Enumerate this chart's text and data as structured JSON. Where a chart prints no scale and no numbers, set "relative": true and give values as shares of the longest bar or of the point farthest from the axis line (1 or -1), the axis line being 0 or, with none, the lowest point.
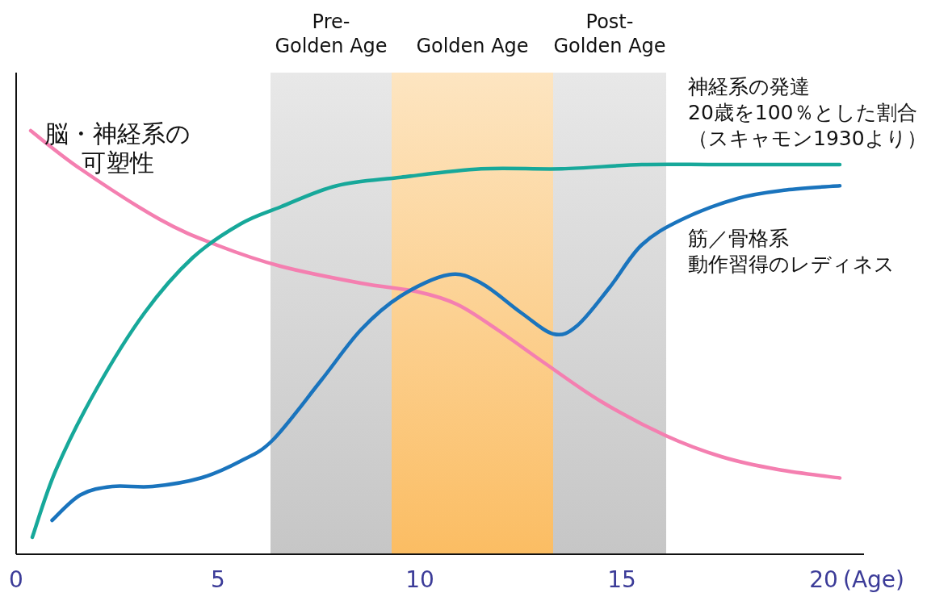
{
  "chart_data": {
    "type": "line",
    "relative": true,
    "xlabel": "(Age)",
    "xlim": [
      0,
      21
    ],
    "xticks": [
      0,
      5,
      10,
      15,
      20
    ],
    "grid": false,
    "marker": "none",
    "line_style": "solid",
    "bands": [
      {
        "axis": "x",
        "from": 6.3,
        "to": 9.3,
        "label": "Pre-\nGolden Age",
        "color": "#c6c6c6"
      },
      {
        "axis": "x",
        "from": 9.3,
        "to": 13.3,
        "label": "Golden Age",
        "color": "#fbbd63"
      },
      {
        "axis": "x",
        "from": 13.3,
        "to": 16.1,
        "label": "Post-\nGolden Age",
        "color": "#c6c6c6"
      }
    ],
    "series": [
      {
        "name": "脳・神経系の可塑性",
        "color": "#f47fb0",
        "x": [
          0.36,
          1.59,
          3.57,
          4.97,
          6.55,
          8.54,
          9.93,
          10.92,
          11.92,
          13.11,
          14.5,
          16.09,
          17.48,
          18.87,
          20.4
        ],
        "values": [
          1.0,
          0.91,
          0.79,
          0.73,
          0.68,
          0.64,
          0.62,
          0.59,
          0.53,
          0.45,
          0.36,
          0.28,
          0.23,
          0.2,
          0.18
        ]
      },
      {
        "name": "神経系の発達20歳を100％とした割合（スキャモン1930より）",
        "color": "#17a89a",
        "x": [
          0.4,
          0.99,
          1.99,
          3.18,
          4.37,
          5.56,
          6.55,
          7.94,
          9.53,
          11.52,
          13.51,
          15.49,
          17.48,
          20.4
        ],
        "values": [
          0.04,
          0.2,
          0.39,
          0.57,
          0.7,
          0.78,
          0.82,
          0.87,
          0.89,
          0.91,
          0.91,
          0.92,
          0.92,
          0.92
        ]
      },
      {
        "name": "筋／骨格系動作習得のレディネス",
        "color": "#1a74bd",
        "x": [
          0.89,
          1.59,
          2.38,
          3.38,
          4.57,
          5.56,
          6.36,
          7.55,
          8.54,
          9.53,
          10.72,
          11.52,
          12.51,
          13.31,
          13.9,
          14.7,
          15.49,
          16.48,
          17.87,
          19.07,
          20.4
        ],
        "values": [
          0.08,
          0.14,
          0.16,
          0.16,
          0.18,
          0.22,
          0.27,
          0.41,
          0.53,
          0.61,
          0.66,
          0.64,
          0.57,
          0.52,
          0.54,
          0.63,
          0.73,
          0.79,
          0.84,
          0.86,
          0.87
        ]
      }
    ]
  }
}
